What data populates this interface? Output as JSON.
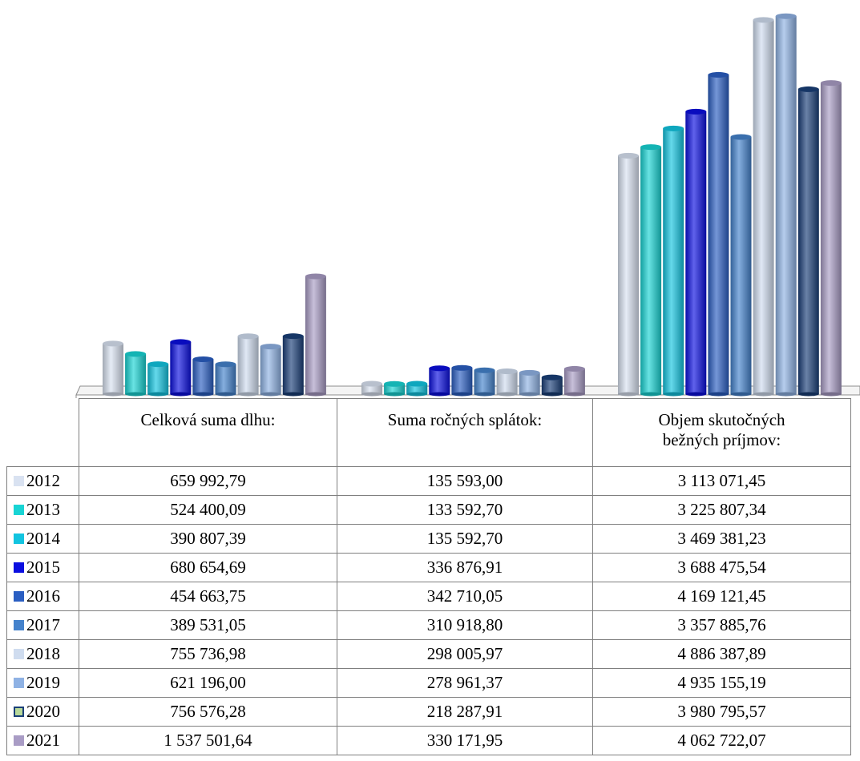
{
  "chart_data": {
    "type": "bar",
    "categories": [
      "Celková suma dlhu:",
      "Suma ročných splátok:",
      "Objem skutočných bežných príjmov:"
    ],
    "series": [
      {
        "name": "2012",
        "color": "#d9e2f1",
        "values": [
          659992.79,
          135593.0,
          3113071.45
        ],
        "labels": [
          "659 992,79",
          "135 593,00",
          "3 113 071,45"
        ]
      },
      {
        "name": "2013",
        "color": "#18d4d4",
        "values": [
          524400.09,
          133592.7,
          3225807.34
        ],
        "labels": [
          "524 400,09",
          "133 592,70",
          "3 225 807,34"
        ]
      },
      {
        "name": "2014",
        "color": "#12c4e0",
        "values": [
          390807.39,
          135592.7,
          3469381.23
        ],
        "labels": [
          "390 807,39",
          "135 592,70",
          "3 469 381,23"
        ]
      },
      {
        "name": "2015",
        "color": "#0a0ee0",
        "values": [
          680654.69,
          336876.91,
          3688475.54
        ],
        "labels": [
          "680 654,69",
          "336 876,91",
          "3 688 475,54"
        ]
      },
      {
        "name": "2016",
        "color": "#2a5ec2",
        "values": [
          454663.75,
          342710.05,
          4169121.45
        ],
        "labels": [
          "454 663,75",
          "342 710,05",
          "4 169 121,45"
        ]
      },
      {
        "name": "2017",
        "color": "#4482cc",
        "values": [
          389531.05,
          310918.8,
          3357885.76
        ],
        "labels": [
          "389 531,05",
          "310 918,80",
          "3 357 885,76"
        ]
      },
      {
        "name": "2018",
        "color": "#cfdcef",
        "values": [
          755736.98,
          298005.97,
          4886387.89
        ],
        "labels": [
          "755 736,98",
          "298 005,97",
          "4 886 387,89"
        ]
      },
      {
        "name": "2019",
        "color": "#8fb2e4",
        "values": [
          621196.0,
          278961.37,
          4935155.19
        ],
        "labels": [
          "621 196,00",
          "278 961,37",
          "4 935 155,19"
        ]
      },
      {
        "name": "2020",
        "color": "#1a3f78",
        "values": [
          756576.28,
          218287.91,
          3980795.57
        ],
        "labels": [
          "756 576,28",
          "218 287,91",
          "3 980 795,57"
        ]
      },
      {
        "name": "2021",
        "color": "#a99cc5",
        "values": [
          1537501.64,
          330171.95,
          4062722.07
        ],
        "labels": [
          "1 537 501,64",
          "330 171,95",
          "4 062 722,07"
        ]
      }
    ],
    "ylim": [
      0,
      5000000
    ],
    "grid": false,
    "legend": "left-in-table",
    "title": "",
    "xlabel": "",
    "ylabel": ""
  },
  "table": {
    "headers": [
      "Celková suma dlhu:",
      "Suma ročných splátok:",
      "Objem skutočných bežných príjmov:"
    ],
    "header_lines": [
      [
        "Celková suma dlhu:"
      ],
      [
        "Suma ročných splátok:"
      ],
      [
        "Objem skutočných",
        "bežných príjmov:"
      ]
    ]
  }
}
